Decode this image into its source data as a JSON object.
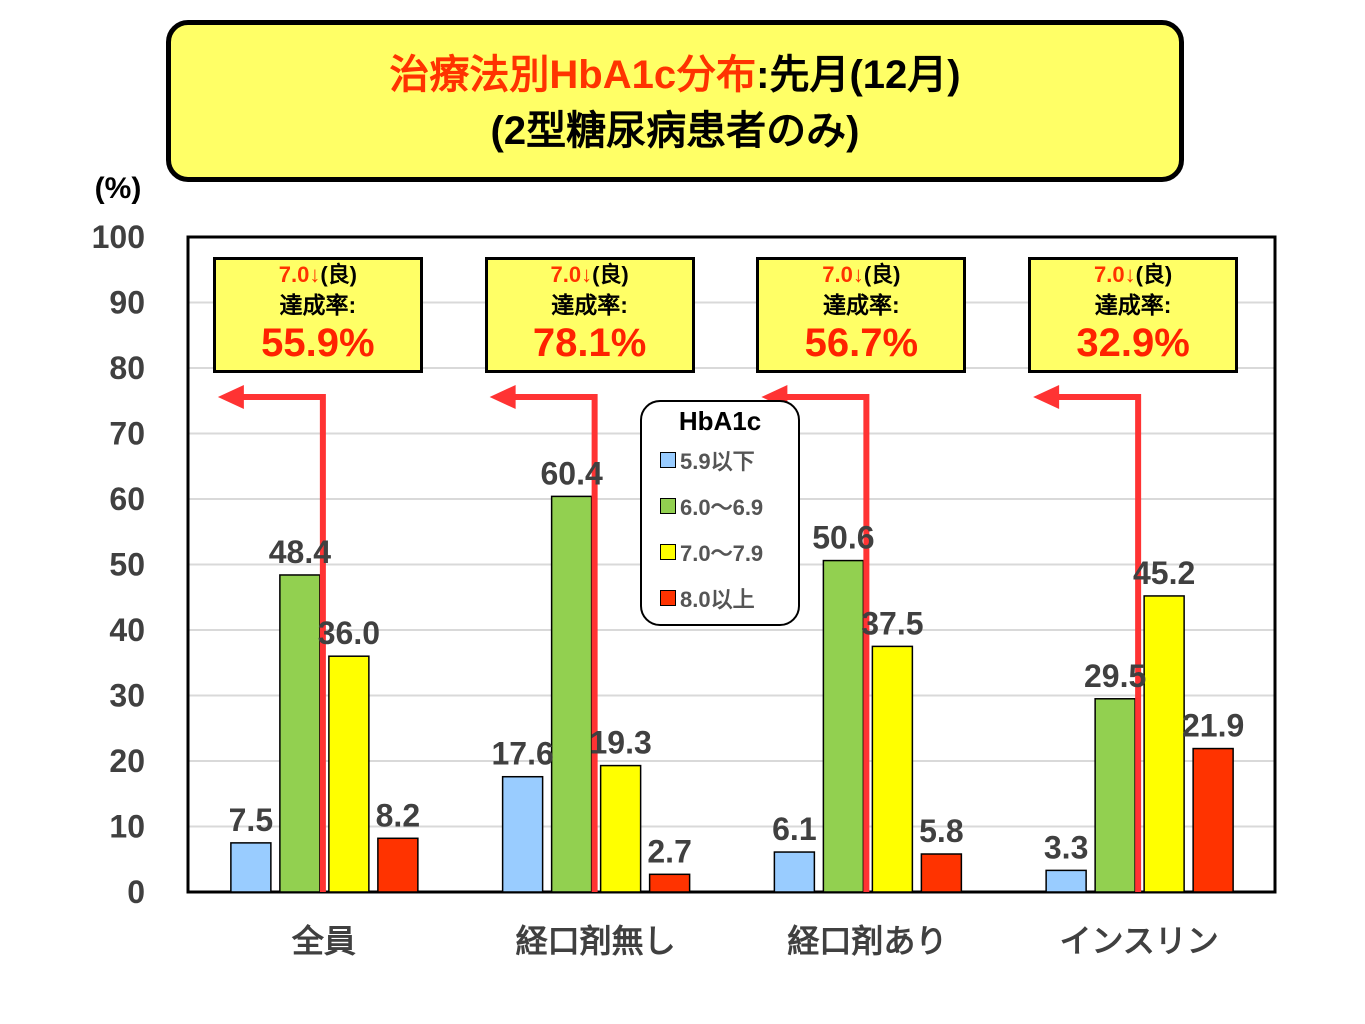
{
  "chart_data": {
    "type": "bar",
    "title_red": "治療法別HbA1c分布",
    "title_black": ":先月(12月)",
    "subtitle": "(2型糖尿病患者のみ)",
    "ylabel": "(%)",
    "ylim": [
      0,
      100
    ],
    "yticks": [
      0,
      10,
      20,
      30,
      40,
      50,
      60,
      70,
      80,
      90,
      100
    ],
    "grid": true,
    "categories": [
      "全員",
      "経口剤無し",
      "経口剤あり",
      "インスリン"
    ],
    "legend_title": "HbA1c",
    "legend_position": "top-center",
    "series": [
      {
        "name": "5.9以下",
        "color": "#99ccff",
        "values": [
          7.5,
          17.6,
          6.1,
          3.3
        ],
        "labels": [
          "7.5",
          "17.6",
          "6.1",
          "3.3"
        ]
      },
      {
        "name": "6.0～6.9",
        "color": "#92d050",
        "values": [
          48.4,
          60.4,
          50.6,
          29.5
        ],
        "labels": [
          "48.4",
          "60.4",
          "50.6",
          "29.5"
        ]
      },
      {
        "name": "7.0～7.9",
        "color": "#ffff00",
        "values": [
          36.0,
          19.3,
          37.5,
          45.2
        ],
        "labels": [
          "36.0",
          "19.3",
          "37.5",
          "45.2"
        ]
      },
      {
        "name": "8.0以上",
        "color": "#ff3300",
        "values": [
          8.2,
          2.7,
          5.8,
          21.9
        ],
        "labels": [
          "8.2",
          "2.7",
          "5.8",
          "21.9"
        ]
      }
    ],
    "annotations": [
      {
        "line1_red": "7.0↓",
        "line1_black": "(良)",
        "line2": "達成率:",
        "value": "55.9%"
      },
      {
        "line1_red": "7.0↓",
        "line1_black": "(良)",
        "line2": "達成率:",
        "value": "78.1%"
      },
      {
        "line1_red": "7.0↓",
        "line1_black": "(良)",
        "line2": "達成率:",
        "value": "56.7%"
      },
      {
        "line1_red": "7.0↓",
        "line1_black": "(良)",
        "line2": "達成率:",
        "value": "32.9%"
      }
    ]
  }
}
